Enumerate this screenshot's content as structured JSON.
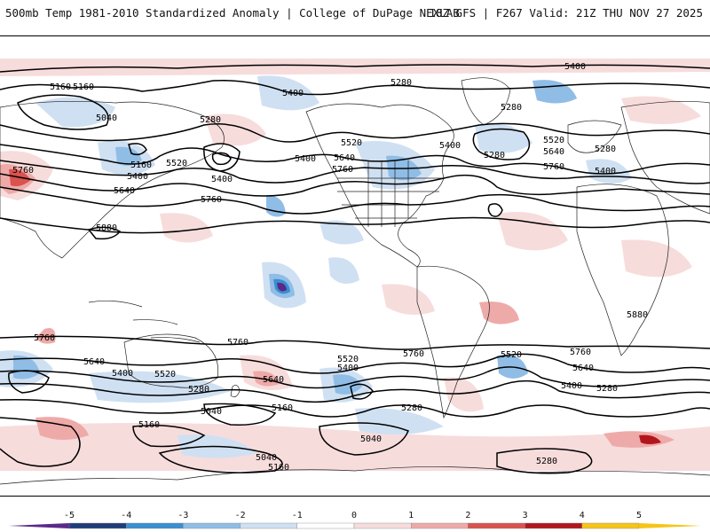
{
  "header": {
    "left_title": "500mb Temp 1981-2010 Standardized Anomaly | College of DuPage NEXLAB",
    "right_title": "18Z GFS | F267 Valid: 21Z THU NOV 27 2025"
  },
  "contour_labels": [
    "5160",
    "5400",
    "5040",
    "5280",
    "5520",
    "5640",
    "5760",
    "5880"
  ],
  "legend": {
    "ticks": [
      "-5",
      "-4",
      "-3",
      "-2",
      "-1",
      "0",
      "1",
      "2",
      "3",
      "4",
      "5"
    ],
    "colors": [
      "#5a2a8a",
      "#1f3d7a",
      "#3a8fd0",
      "#8fbde6",
      "#cfe0f2",
      "#ffffff",
      "#f7dcdc",
      "#eeaaa8",
      "#d9534f",
      "#b2161c",
      "#f5c518"
    ]
  },
  "colors": {
    "cold_light": "#cfe0f2",
    "cold_mid": "#8fbde6",
    "cold_strong": "#3a8fd0",
    "warm_light": "#f7dcdc",
    "warm_mid": "#eeaaa8",
    "warm_strong": "#d9534f",
    "warm_extreme": "#b2161c"
  }
}
